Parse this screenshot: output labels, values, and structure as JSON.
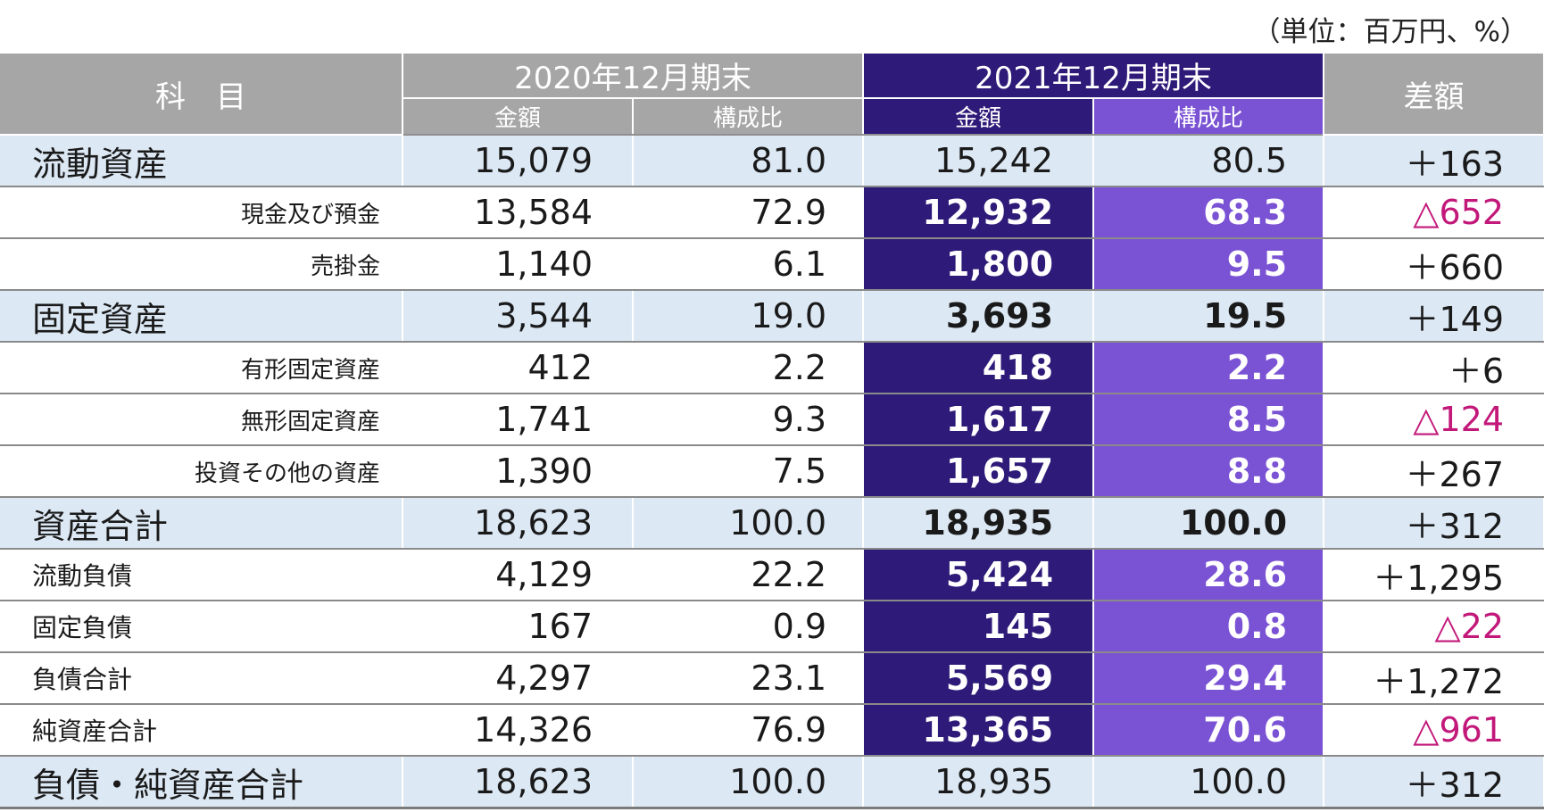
{
  "unit_note": "（単位：百万円、%）",
  "header": {
    "subject": "科　目",
    "period_2020": "2020年12月期末",
    "period_2021": "2021年12月期末",
    "difference": "差額",
    "amount": "金額",
    "ratio": "構成比"
  },
  "colors": {
    "header_gray": "#a6a6a6",
    "highlight_deep": "#2e1a78",
    "highlight_mid": "#7a52d4",
    "section_band": "#dce8f4",
    "negative": "#c2187a"
  },
  "rows": [
    {
      "label": "流動資産",
      "a2020": "15,079",
      "r2020": "81.0",
      "a2021": "15,242",
      "r2021": "80.5",
      "diff": "＋163"
    },
    {
      "label": "現金及び預金",
      "a2020": "13,584",
      "r2020": "72.9",
      "a2021": "12,932",
      "r2021": "68.3",
      "diff": "△652"
    },
    {
      "label": "売掛金",
      "a2020": "1,140",
      "r2020": "6.1",
      "a2021": "1,800",
      "r2021": "9.5",
      "diff": "＋660"
    },
    {
      "label": "固定資産",
      "a2020": "3,544",
      "r2020": "19.0",
      "a2021": "3,693",
      "r2021": "19.5",
      "diff": "＋149"
    },
    {
      "label": "有形固定資産",
      "a2020": "412",
      "r2020": "2.2",
      "a2021": "418",
      "r2021": "2.2",
      "diff": "＋6"
    },
    {
      "label": "無形固定資産",
      "a2020": "1,741",
      "r2020": "9.3",
      "a2021": "1,617",
      "r2021": "8.5",
      "diff": "△124"
    },
    {
      "label": "投資その他の資産",
      "a2020": "1,390",
      "r2020": "7.5",
      "a2021": "1,657",
      "r2021": "8.8",
      "diff": "＋267"
    },
    {
      "label": "資産合計",
      "a2020": "18,623",
      "r2020": "100.0",
      "a2021": "18,935",
      "r2021": "100.0",
      "diff": "＋312"
    },
    {
      "label": "流動負債",
      "a2020": "4,129",
      "r2020": "22.2",
      "a2021": "5,424",
      "r2021": "28.6",
      "diff": "＋1,295"
    },
    {
      "label": "固定負債",
      "a2020": "167",
      "r2020": "0.9",
      "a2021": "145",
      "r2021": "0.8",
      "diff": "△22"
    },
    {
      "label": "負債合計",
      "a2020": "4,297",
      "r2020": "23.1",
      "a2021": "5,569",
      "r2021": "29.4",
      "diff": "＋1,272"
    },
    {
      "label": "純資産合計",
      "a2020": "14,326",
      "r2020": "76.9",
      "a2021": "13,365",
      "r2021": "70.6",
      "diff": "△961"
    },
    {
      "label": "負債・純資産合計",
      "a2020": "18,623",
      "r2020": "100.0",
      "a2021": "18,935",
      "r2021": "100.0",
      "diff": "＋312"
    }
  ]
}
